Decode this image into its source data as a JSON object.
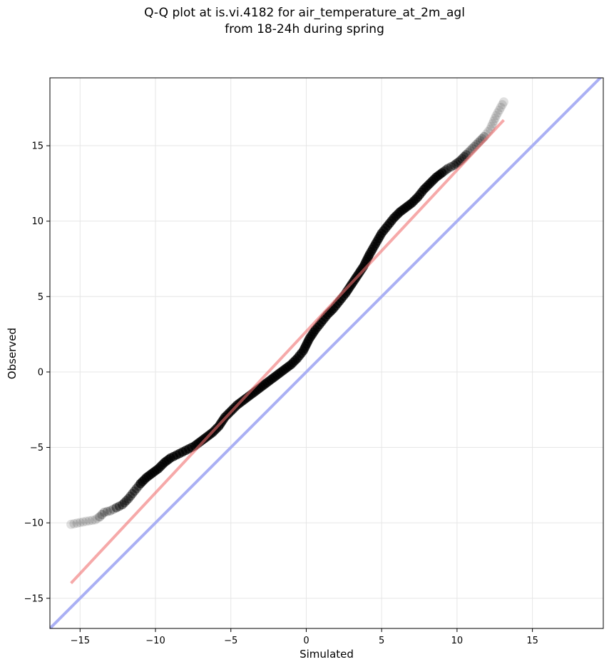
{
  "title_line1": "Q-Q plot at is.vi.4182 for air_temperature_at_2m_agl",
  "title_line2": "from 18-24h during spring",
  "colors": {
    "points": "#000000",
    "fit_line": "#f4a6a6",
    "identity_line": "#aab0f4",
    "grid": "#e6e6e6",
    "axes": "#000000"
  },
  "chart_data": {
    "type": "scatter",
    "title": "Q-Q plot at is.vi.4182 for air_temperature_at_2m_agl\nfrom 18-24h during spring",
    "xlabel": "Simulated",
    "ylabel": "Observed",
    "xlim": [
      -17,
      19.7
    ],
    "ylim": [
      -17,
      19.5
    ],
    "xticks": [
      -15,
      -10,
      -5,
      0,
      5,
      10,
      15
    ],
    "yticks": [
      -15,
      -10,
      -5,
      0,
      5,
      10,
      15
    ],
    "xtick_labels": [
      "−15",
      "−10",
      "−5",
      "0",
      "5",
      "10",
      "15"
    ],
    "ytick_labels": [
      "−15",
      "−10",
      "−5",
      "0",
      "5",
      "10",
      "15"
    ],
    "grid": true,
    "series": [
      {
        "kind": "quantile_points",
        "points": [
          [
            -15.6,
            -10.1
          ],
          [
            -14.6,
            -9.9
          ],
          [
            -14.0,
            -9.8
          ],
          [
            -13.7,
            -9.6
          ],
          [
            -13.4,
            -9.3
          ],
          [
            -13.0,
            -9.2
          ],
          [
            -12.6,
            -9.0
          ],
          [
            -12.2,
            -8.8
          ],
          [
            -11.8,
            -8.4
          ],
          [
            -11.4,
            -7.9
          ],
          [
            -11.0,
            -7.4
          ],
          [
            -10.6,
            -7.0
          ],
          [
            -10.2,
            -6.7
          ],
          [
            -9.8,
            -6.4
          ],
          [
            -9.4,
            -6.0
          ],
          [
            -9.0,
            -5.7
          ],
          [
            -8.6,
            -5.5
          ],
          [
            -8.2,
            -5.3
          ],
          [
            -7.8,
            -5.1
          ],
          [
            -7.4,
            -4.9
          ],
          [
            -7.0,
            -4.6
          ],
          [
            -6.6,
            -4.3
          ],
          [
            -6.2,
            -4.0
          ],
          [
            -5.8,
            -3.6
          ],
          [
            -5.4,
            -3.0
          ],
          [
            -5.0,
            -2.6
          ],
          [
            -4.6,
            -2.2
          ],
          [
            -4.2,
            -1.9
          ],
          [
            -3.8,
            -1.6
          ],
          [
            -3.4,
            -1.3
          ],
          [
            -3.0,
            -1.0
          ],
          [
            -2.6,
            -0.7
          ],
          [
            -2.2,
            -0.4
          ],
          [
            -1.8,
            -0.1
          ],
          [
            -1.4,
            0.2
          ],
          [
            -1.0,
            0.5
          ],
          [
            -0.6,
            0.9
          ],
          [
            -0.2,
            1.4
          ],
          [
            0.2,
            2.2
          ],
          [
            0.6,
            2.8
          ],
          [
            1.0,
            3.3
          ],
          [
            1.4,
            3.8
          ],
          [
            1.8,
            4.2
          ],
          [
            2.2,
            4.7
          ],
          [
            2.6,
            5.2
          ],
          [
            3.0,
            5.8
          ],
          [
            3.4,
            6.4
          ],
          [
            3.8,
            7.0
          ],
          [
            4.2,
            7.8
          ],
          [
            4.6,
            8.5
          ],
          [
            5.0,
            9.2
          ],
          [
            5.4,
            9.7
          ],
          [
            5.8,
            10.2
          ],
          [
            6.2,
            10.6
          ],
          [
            6.6,
            10.9
          ],
          [
            7.0,
            11.2
          ],
          [
            7.4,
            11.6
          ],
          [
            7.8,
            12.1
          ],
          [
            8.2,
            12.5
          ],
          [
            8.6,
            12.9
          ],
          [
            9.0,
            13.2
          ],
          [
            9.4,
            13.5
          ],
          [
            9.8,
            13.7
          ],
          [
            10.2,
            14.0
          ],
          [
            10.6,
            14.4
          ],
          [
            11.0,
            14.8
          ],
          [
            11.4,
            15.2
          ],
          [
            11.8,
            15.6
          ],
          [
            12.2,
            16.1
          ],
          [
            12.6,
            17.0
          ],
          [
            13.1,
            17.9
          ]
        ]
      },
      {
        "kind": "fit_line",
        "points": [
          [
            -15.6,
            -14.0
          ],
          [
            13.1,
            16.7
          ]
        ]
      },
      {
        "kind": "identity_line",
        "points": [
          [
            -17,
            -17
          ],
          [
            19.7,
            19.7
          ]
        ]
      }
    ]
  }
}
